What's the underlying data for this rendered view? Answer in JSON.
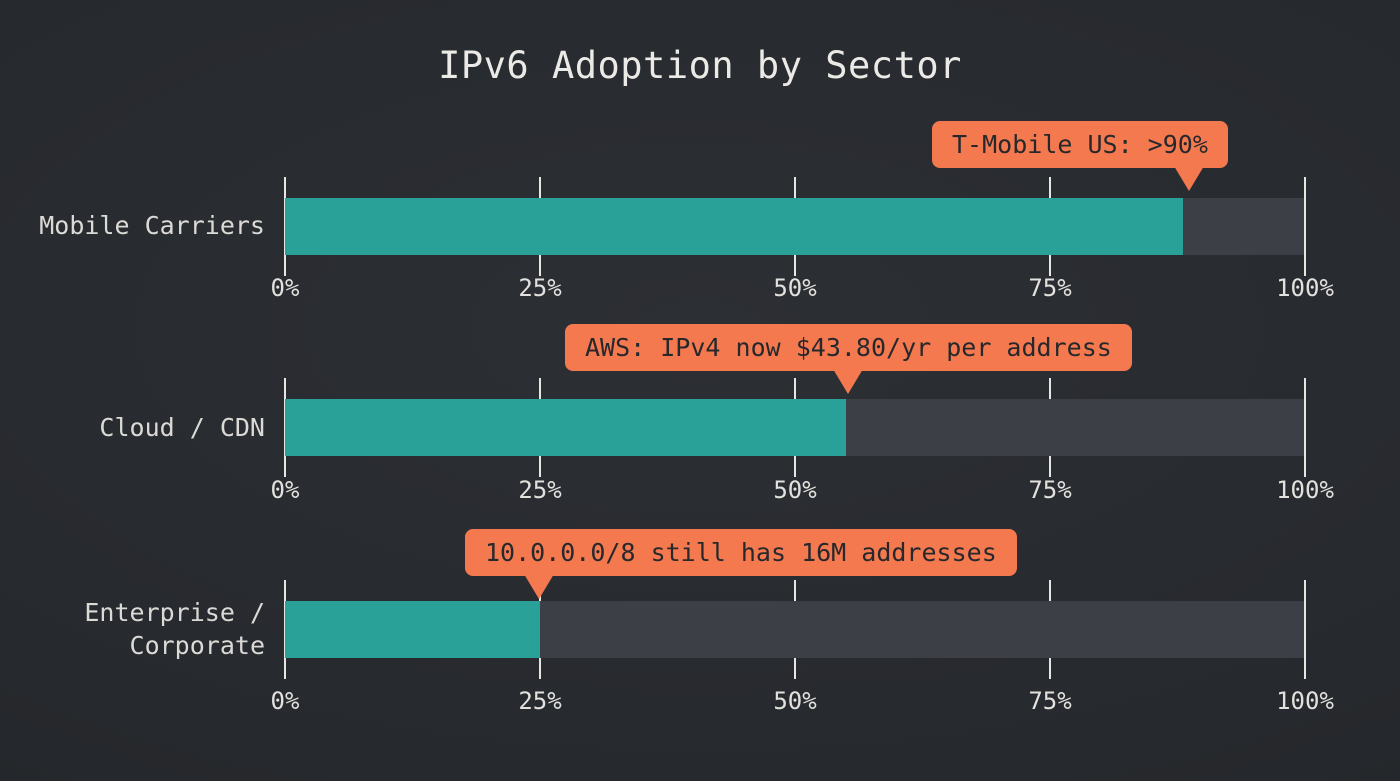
{
  "chart_data": {
    "type": "bar",
    "orientation": "horizontal",
    "title": "IPv6 Adoption by Sector",
    "categories": [
      "Mobile Carriers",
      "Cloud / CDN",
      "Enterprise / Corporate"
    ],
    "values": [
      88,
      55,
      25
    ],
    "xlim": [
      0,
      100
    ],
    "axis": {
      "ticks": [
        "0%",
        "25%",
        "50%",
        "75%",
        "100%"
      ],
      "tick_values": [
        0,
        25,
        50,
        75,
        100
      ],
      "repeated_per_row": true
    },
    "annotations": [
      {
        "text": "T-Mobile US: >90%",
        "points_to_value": 88,
        "row": "Mobile Carriers"
      },
      {
        "text": "AWS: IPv4 now $43.80/yr per address",
        "points_to_value": 55,
        "row": "Cloud / CDN"
      },
      {
        "text": "10.0.0.0/8 still has 16M addresses",
        "points_to_value": 25,
        "row": "Enterprise / Corporate"
      }
    ],
    "legend": "none",
    "grid": "white tick lines at each 25% per row",
    "colors": {
      "background": "#26292d",
      "bar_fill": "#2aa198",
      "bar_track": "#3c4046",
      "annotation_bg": "#f4794f",
      "annotation_text": "#26282c",
      "text": "#e8e6e2"
    }
  }
}
